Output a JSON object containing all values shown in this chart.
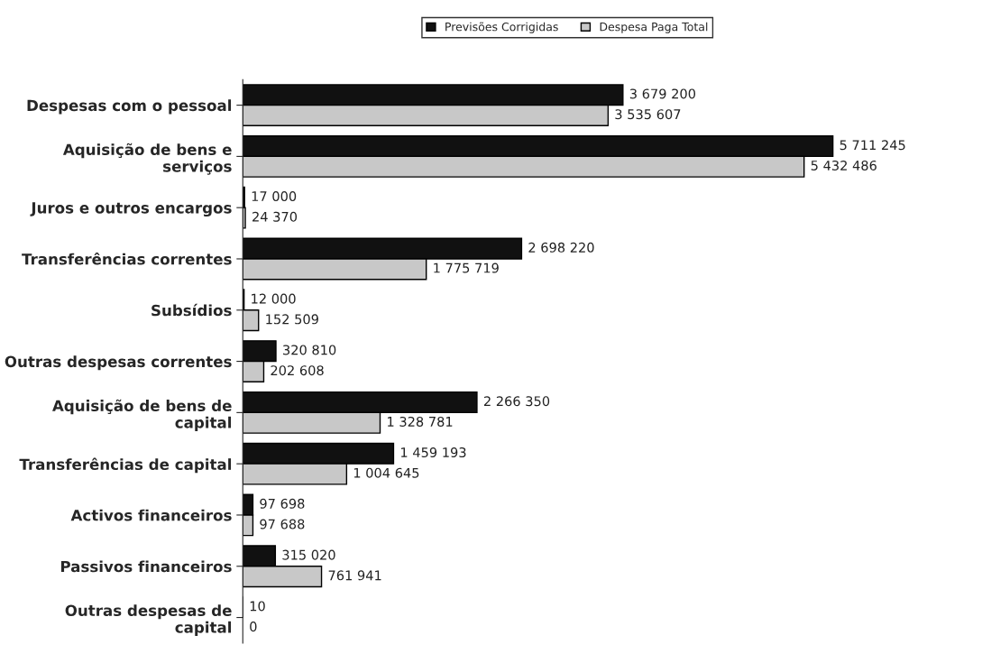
{
  "chart_data": {
    "type": "bar",
    "orientation": "horizontal",
    "legend": "top",
    "grid": false,
    "categories": [
      "Despesas com o pessoal",
      "Aquisição de bens e\nserviços",
      "Juros e outros encargos",
      "Transferências correntes",
      "Subsídios",
      "Outras despesas correntes",
      "Aquisição de bens de\ncapital",
      "Transferências de capital",
      "Activos financeiros",
      "Passivos financeiros",
      "Outras despesas de\ncapital"
    ],
    "series": [
      {
        "name": "Previsões Corrigidas",
        "color": "#111111",
        "values": [
          3679200,
          5711245,
          17000,
          2698220,
          12000,
          320810,
          2266350,
          1459193,
          97698,
          315020,
          10
        ],
        "value_labels": [
          "3 679 200",
          "5 711 245",
          "17 000",
          "2 698 220",
          "12 000",
          "320 810",
          "2 266 350",
          "1 459 193",
          "97 698",
          "315 020",
          "10"
        ]
      },
      {
        "name": "Despesa Paga Total",
        "color": "#c8c8c8",
        "values": [
          3535607,
          5432486,
          24370,
          1775719,
          152509,
          202608,
          1328781,
          1004645,
          97688,
          761941,
          0
        ],
        "value_labels": [
          "3 535 607",
          "5 432 486",
          "24 370",
          "1 775 719",
          "152 509",
          "202 608",
          "1 328 781",
          "1 004 645",
          "97 688",
          "761 941",
          "0"
        ]
      }
    ]
  }
}
